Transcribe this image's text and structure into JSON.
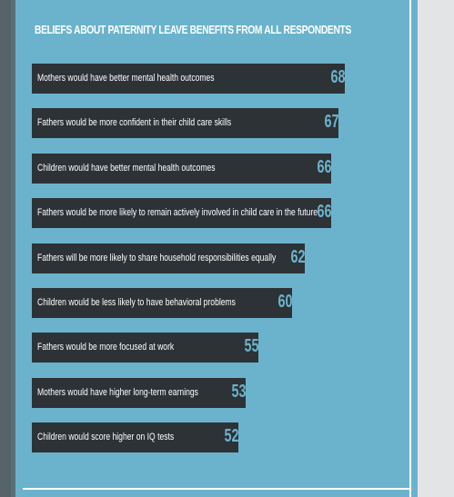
{
  "chart_data": {
    "type": "bar",
    "title": "BELIEFS ABOUT PATERNITY LEAVE BENEFITS FROM ALL RESPONDENTS",
    "categories": [
      "Mothers would have better mental health outcomes",
      "Fathers would be more confident in their child care skills",
      "Children would have better mental health outcomes",
      "Fathers would be more likely to remain actively involved in child care in the future",
      "Fathers will be more likely to share household responsibilities equally",
      "Children would be less likely to have behavioral problems",
      "Fathers would be more focused at work",
      "Mothers would have higher long-term earnings",
      "Children would score higher on IQ tests"
    ],
    "values": [
      68,
      67,
      66,
      66,
      62,
      60,
      55,
      53,
      52
    ],
    "value_suffix": "%",
    "colors": {
      "bar": "#2d3236",
      "background": "#6bb3cd",
      "value": "#6bb3cd",
      "label": "#ffffff"
    }
  }
}
